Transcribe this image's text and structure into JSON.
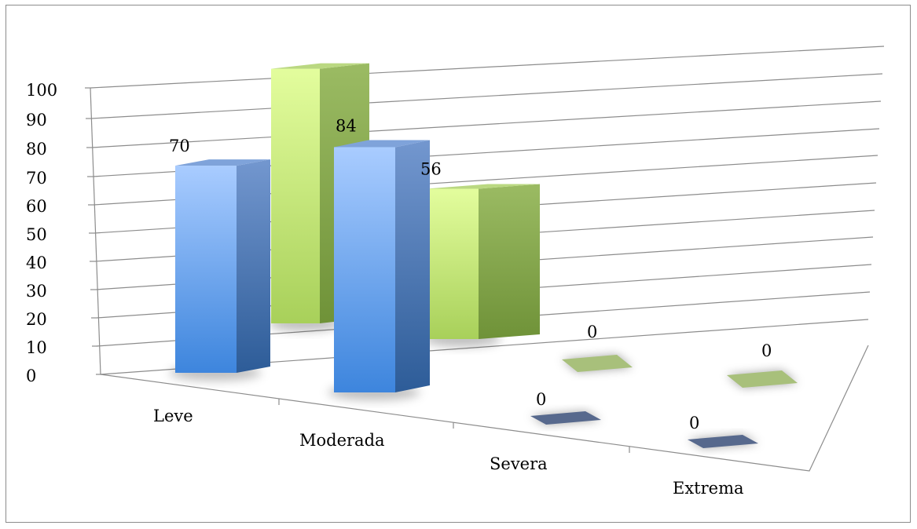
{
  "chart_data": {
    "type": "bar",
    "variant": "3d-clustered-column",
    "title": "",
    "xlabel": "",
    "ylabel": "",
    "categories": [
      "Leve",
      "Moderada",
      "Severa",
      "Extrema"
    ],
    "series": [
      {
        "color": "#5b8fd6",
        "values": [
          70,
          84,
          0,
          0
        ]
      },
      {
        "color": "#b2d46a",
        "values": [
          98,
          56,
          0,
          0
        ]
      }
    ],
    "ylim": [
      0,
      100
    ],
    "yticks": [
      0,
      10,
      20,
      30,
      40,
      50,
      60,
      70,
      80,
      90,
      100
    ],
    "yticks_text": [
      "0",
      "10",
      "20",
      "30",
      "40",
      "50",
      "60",
      "70",
      "80",
      "90",
      "100"
    ],
    "data_labels_text": [
      [
        "70",
        "84",
        "0",
        "0"
      ],
      [
        "98",
        "56",
        "0",
        "0"
      ]
    ],
    "grid": true,
    "legend": "none"
  }
}
